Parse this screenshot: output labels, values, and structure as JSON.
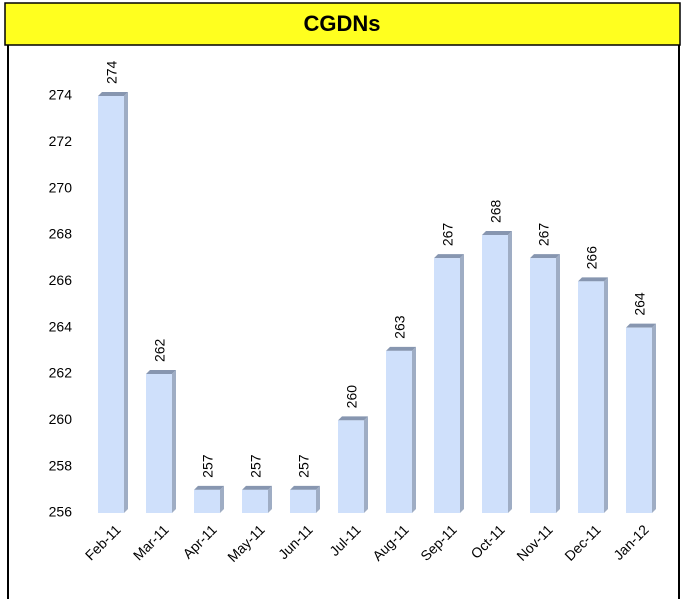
{
  "chart_data": {
    "type": "bar",
    "title": "CGDNs",
    "categories": [
      "Feb-11",
      "Mar-11",
      "Apr-11",
      "May-11",
      "Jun-11",
      "Jul-11",
      "Aug-11",
      "Sep-11",
      "Oct-11",
      "Nov-11",
      "Dec-11",
      "Jan-12"
    ],
    "values": [
      274,
      262,
      257,
      257,
      257,
      260,
      263,
      267,
      268,
      267,
      266,
      264
    ],
    "color": "#cfe0fb",
    "ylim": [
      256,
      276
    ],
    "yticks": [
      256,
      258,
      260,
      262,
      264,
      266,
      268,
      270,
      272,
      274
    ],
    "grid": false
  }
}
